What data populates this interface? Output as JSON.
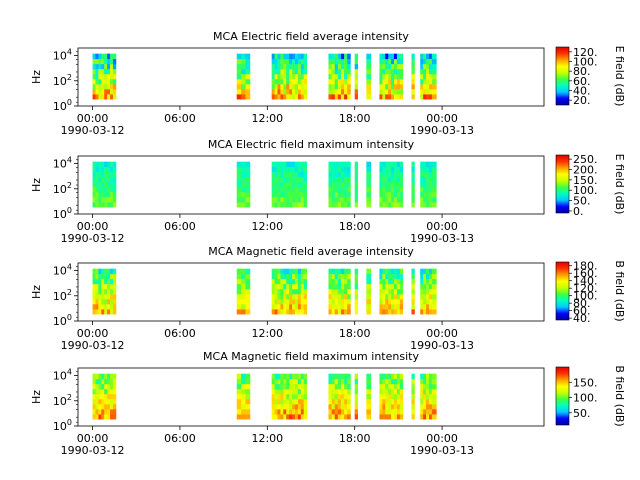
{
  "chart_data": [
    {
      "type": "heatmap",
      "title": "MCA  Electric field average intensity",
      "ylabel": "Hz",
      "colorbar_label": "E field (dB)",
      "colorbar_ticks": [
        "120.",
        "100.",
        "80.",
        "60.",
        "40.",
        "20."
      ],
      "colorbar_values": [
        120,
        100,
        80,
        60,
        40,
        20
      ],
      "colorbar_range": [
        10,
        130
      ],
      "y_scale": "log",
      "y_ticks": [
        "10^4",
        "10^2",
        "10^0"
      ],
      "ylim_exp": [
        0,
        4.6
      ],
      "x_range_hours": [
        -1,
        31
      ],
      "x_ticks": [
        {
          "hour": 0,
          "label": "00:00",
          "date": "1990-03-12"
        },
        {
          "hour": 6,
          "label": "06:00",
          "date": ""
        },
        {
          "hour": 12,
          "label": "12:00",
          "date": ""
        },
        {
          "hour": 18,
          "label": "18:00",
          "date": ""
        },
        {
          "hour": 24,
          "label": "00:00",
          "date": "1990-03-13"
        }
      ],
      "data_hours": [
        [
          0.0,
          1.6
        ],
        [
          9.9,
          10.2
        ],
        [
          10.2,
          10.5
        ],
        [
          10.5,
          10.8
        ],
        [
          12.3,
          14.7
        ],
        [
          16.2,
          17.7
        ],
        [
          18.0,
          18.2
        ],
        [
          18.8,
          19.1
        ],
        [
          19.7,
          21.3
        ],
        [
          21.9,
          22.1
        ],
        [
          22.5,
          23.3
        ],
        [
          23.3,
          23.6
        ]
      ],
      "intensity_range_db": [
        20,
        120
      ]
    },
    {
      "type": "heatmap",
      "title": "MCA  Electric field maximum intensity",
      "ylabel": "Hz",
      "colorbar_label": "E field (dB)",
      "colorbar_ticks": [
        "250.",
        "200.",
        "150.",
        "100.",
        "50.",
        "0."
      ],
      "colorbar_values": [
        250,
        200,
        150,
        100,
        50,
        0
      ],
      "colorbar_range": [
        -10,
        270
      ],
      "y_scale": "log",
      "y_ticks": [
        "10^4",
        "10^2",
        "10^0"
      ],
      "ylim_exp": [
        0,
        4.6
      ],
      "x_range_hours": [
        -1,
        31
      ],
      "x_ticks": [
        {
          "hour": 0,
          "label": "00:00",
          "date": "1990-03-12"
        },
        {
          "hour": 6,
          "label": "06:00",
          "date": ""
        },
        {
          "hour": 12,
          "label": "12:00",
          "date": ""
        },
        {
          "hour": 18,
          "label": "18:00",
          "date": ""
        },
        {
          "hour": 24,
          "label": "00:00",
          "date": "1990-03-13"
        }
      ],
      "data_hours": [
        [
          0.0,
          1.6
        ],
        [
          9.9,
          10.2
        ],
        [
          10.2,
          10.5
        ],
        [
          10.5,
          10.8
        ],
        [
          12.3,
          14.7
        ],
        [
          16.2,
          17.7
        ],
        [
          18.0,
          18.2
        ],
        [
          18.8,
          19.1
        ],
        [
          19.7,
          21.3
        ],
        [
          21.9,
          22.1
        ],
        [
          22.5,
          23.3
        ],
        [
          23.3,
          23.6
        ]
      ],
      "intensity_range_db": [
        60,
        140
      ]
    },
    {
      "type": "heatmap",
      "title": "MCA  Magnetic field average intensity",
      "ylabel": "Hz",
      "colorbar_label": "B field (dB)",
      "colorbar_ticks": [
        "180.",
        "160.",
        "140.",
        "120.",
        "100.",
        "80.",
        "60.",
        "40."
      ],
      "colorbar_values": [
        180,
        160,
        140,
        120,
        100,
        80,
        60,
        40
      ],
      "colorbar_range": [
        35,
        190
      ],
      "y_scale": "log",
      "y_ticks": [
        "10^4",
        "10^2",
        "10^0"
      ],
      "ylim_exp": [
        0,
        4.6
      ],
      "x_range_hours": [
        -1,
        31
      ],
      "x_ticks": [
        {
          "hour": 0,
          "label": "00:00",
          "date": "1990-03-12"
        },
        {
          "hour": 6,
          "label": "06:00",
          "date": ""
        },
        {
          "hour": 12,
          "label": "12:00",
          "date": ""
        },
        {
          "hour": 18,
          "label": "18:00",
          "date": ""
        },
        {
          "hour": 24,
          "label": "00:00",
          "date": "1990-03-13"
        }
      ],
      "data_hours": [
        [
          0.0,
          1.6
        ],
        [
          9.9,
          10.2
        ],
        [
          10.2,
          10.5
        ],
        [
          10.5,
          10.8
        ],
        [
          12.3,
          14.7
        ],
        [
          16.2,
          17.7
        ],
        [
          18.0,
          18.2
        ],
        [
          18.8,
          19.1
        ],
        [
          19.7,
          21.3
        ],
        [
          21.9,
          22.1
        ],
        [
          22.5,
          23.3
        ],
        [
          23.3,
          23.6
        ]
      ],
      "intensity_range_db": [
        70,
        170
      ]
    },
    {
      "type": "heatmap",
      "title": "MCA  Magnetic field maximum intensity",
      "ylabel": "Hz",
      "colorbar_label": "B field (dB)",
      "colorbar_ticks": [
        "150.",
        "100.",
        "50."
      ],
      "colorbar_values": [
        150,
        100,
        50
      ],
      "colorbar_range": [
        10,
        200
      ],
      "y_scale": "log",
      "y_ticks": [
        "10^4",
        "10^2",
        "10^0"
      ],
      "ylim_exp": [
        0,
        4.6
      ],
      "x_range_hours": [
        -1,
        31
      ],
      "x_ticks": [
        {
          "hour": 0,
          "label": "00:00",
          "date": "1990-03-12"
        },
        {
          "hour": 6,
          "label": "06:00",
          "date": ""
        },
        {
          "hour": 12,
          "label": "12:00",
          "date": ""
        },
        {
          "hour": 18,
          "label": "18:00",
          "date": ""
        },
        {
          "hour": 24,
          "label": "00:00",
          "date": "1990-03-13"
        }
      ],
      "data_hours": [
        [
          0.0,
          1.6
        ],
        [
          9.9,
          10.2
        ],
        [
          10.2,
          10.5
        ],
        [
          10.5,
          10.8
        ],
        [
          12.3,
          14.7
        ],
        [
          16.2,
          17.7
        ],
        [
          18.0,
          18.2
        ],
        [
          18.8,
          19.1
        ],
        [
          19.7,
          21.3
        ],
        [
          21.9,
          22.1
        ],
        [
          22.5,
          23.3
        ],
        [
          23.3,
          23.6
        ]
      ],
      "intensity_range_db": [
        70,
        180
      ]
    }
  ],
  "figure": {
    "colormap_stops": [
      "#0000a0",
      "#0000ff",
      "#00c8ff",
      "#00ffc0",
      "#40ff40",
      "#c8ff00",
      "#ffff00",
      "#ffa000",
      "#ff3000",
      "#e00000"
    ]
  }
}
